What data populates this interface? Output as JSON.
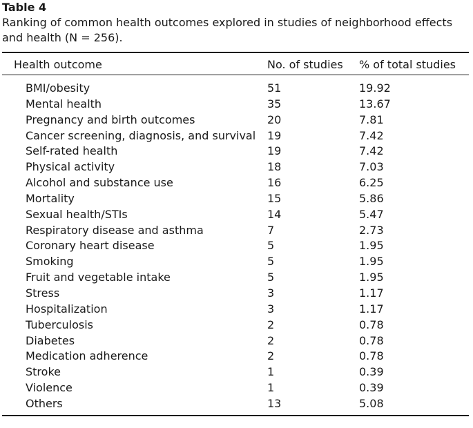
{
  "table": {
    "label": "Table 4",
    "caption": "Ranking of common health outcomes explored in studies of neighborhood effects and health (N = 256).",
    "headers": {
      "outcome": "Health outcome",
      "count": "No. of studies",
      "percent": "% of total studies"
    },
    "rows": [
      {
        "outcome": "BMI/obesity",
        "count": "51",
        "percent": "19.92"
      },
      {
        "outcome": "Mental health",
        "count": "35",
        "percent": "13.67"
      },
      {
        "outcome": "Pregnancy and birth outcomes",
        "count": "20",
        "percent": "7.81"
      },
      {
        "outcome": "Cancer screening, diagnosis, and survival",
        "count": "19",
        "percent": "7.42"
      },
      {
        "outcome": "Self-rated health",
        "count": "19",
        "percent": "7.42"
      },
      {
        "outcome": "Physical activity",
        "count": "18",
        "percent": "7.03"
      },
      {
        "outcome": "Alcohol and substance use",
        "count": "16",
        "percent": "6.25"
      },
      {
        "outcome": "Mortality",
        "count": "15",
        "percent": "5.86"
      },
      {
        "outcome": "Sexual health/STIs",
        "count": "14",
        "percent": "5.47"
      },
      {
        "outcome": "Respiratory disease and asthma",
        "count": "7",
        "percent": "2.73"
      },
      {
        "outcome": "Coronary heart disease",
        "count": "5",
        "percent": "1.95"
      },
      {
        "outcome": "Smoking",
        "count": "5",
        "percent": "1.95"
      },
      {
        "outcome": "Fruit and vegetable intake",
        "count": "5",
        "percent": "1.95"
      },
      {
        "outcome": "Stress",
        "count": "3",
        "percent": "1.17"
      },
      {
        "outcome": "Hospitalization",
        "count": "3",
        "percent": "1.17"
      },
      {
        "outcome": "Tuberculosis",
        "count": "2",
        "percent": "0.78"
      },
      {
        "outcome": "Diabetes",
        "count": "2",
        "percent": "0.78"
      },
      {
        "outcome": "Medication adherence",
        "count": "2",
        "percent": "0.78"
      },
      {
        "outcome": "Stroke",
        "count": "1",
        "percent": "0.39"
      },
      {
        "outcome": "Violence",
        "count": "1",
        "percent": "0.39"
      },
      {
        "outcome": "Others",
        "count": "13",
        "percent": "5.08"
      }
    ]
  }
}
